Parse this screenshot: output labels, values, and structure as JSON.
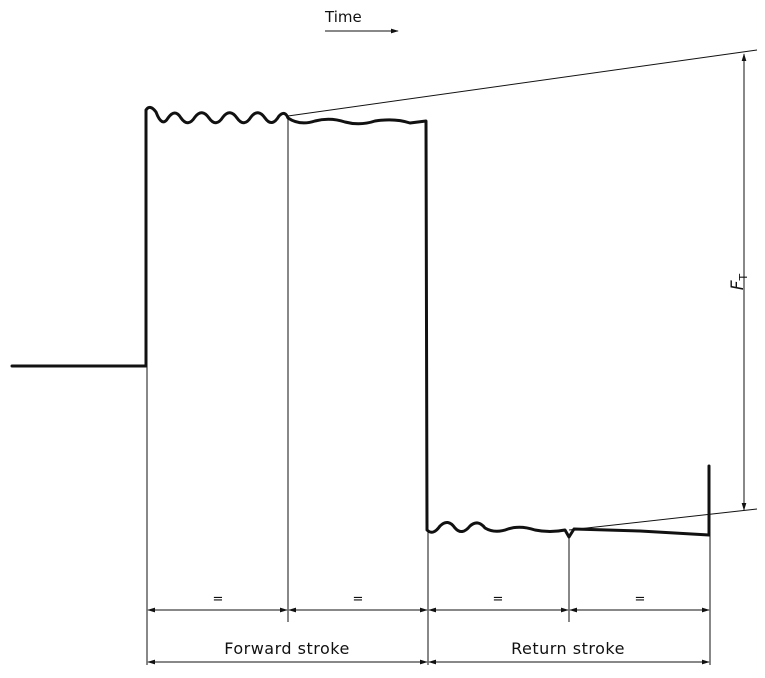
{
  "time_axis": {
    "label": "Time"
  },
  "force": {
    "symbol": "F",
    "subscript": "T"
  },
  "segments": {
    "forward_first_half": "=",
    "forward_second_half": "=",
    "return_first_half": "=",
    "return_second_half": "="
  },
  "strokes": {
    "forward": "Forward stroke",
    "return": "Return stroke"
  }
}
